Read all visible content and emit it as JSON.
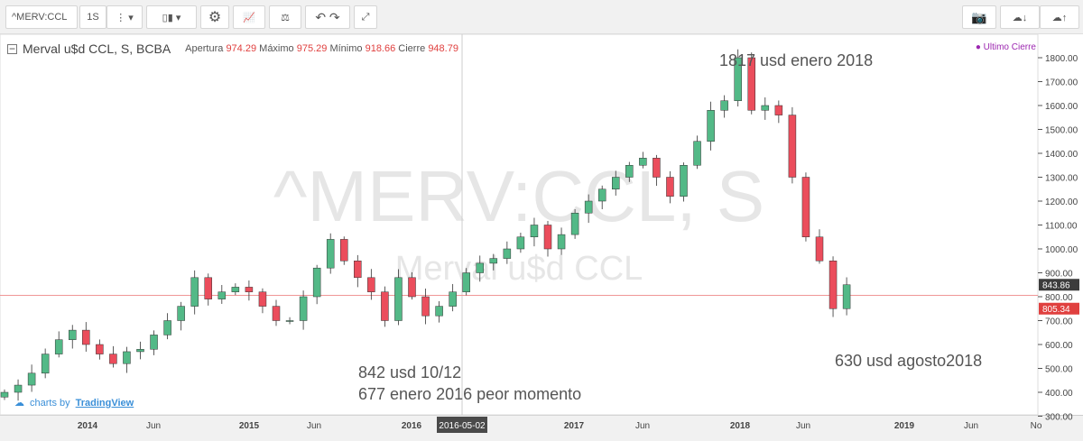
{
  "toolbar": {
    "symbol": "^MERV:CCL",
    "interval": "1S",
    "buttons": [
      "more-icon",
      "dropdown-icon",
      "candles-icon",
      "dropdown-icon",
      "gear-icon",
      "indicators-icon",
      "compare-icon",
      "undo-icon",
      "redo-icon",
      "fullscreen-icon"
    ],
    "right_buttons": [
      "camera-icon",
      "cloud-download-icon",
      "cloud-upload-icon"
    ]
  },
  "legend": {
    "title": "Merval u$d CCL, S, BCBA",
    "open_label": "Apertura",
    "open": "974.29",
    "high_label": "Máximo",
    "high": "975.29",
    "low_label": "Mínimo",
    "low": "918.66",
    "close_label": "Cierre",
    "close": "948.79",
    "last_label": "Ultimo Cierre"
  },
  "watermark": {
    "line1": "^MERV:CCL, S",
    "line2": "Merval u$d CCL"
  },
  "annotations": [
    "1817 usd enero 2018",
    "630 usd agosto2018",
    "842 usd 10/12",
    "677 enero 2016 peor momento"
  ],
  "brand": {
    "prefix": "charts by",
    "name": "TradingView"
  },
  "colors": {
    "up": "#53b987",
    "down": "#eb4d5c",
    "last_line": "#e88",
    "accent": "#9c27b0"
  },
  "chart_data": {
    "type": "candlestick",
    "ylim": [
      270,
      1850
    ],
    "yticks": [
      "300.00",
      "400.00",
      "500.00",
      "600.00",
      "700.00",
      "800.00",
      "900.00",
      "1000.00",
      "1100.00",
      "1200.00",
      "1300.00",
      "1400.00",
      "1500.00",
      "1600.00",
      "1700.00",
      "1800.00"
    ],
    "xticks": [
      "2014",
      "Jun",
      "2015",
      "Jun",
      "2016",
      "2016-05-02",
      "2017",
      "Jun",
      "2018",
      "Jun",
      "2019",
      "Jun",
      "No"
    ],
    "price_labels": {
      "current": "805.34",
      "other": "843.86"
    },
    "months": [
      "2013-07",
      "2013-08",
      "2013-09",
      "2013-10",
      "2013-11",
      "2013-12",
      "2014-01",
      "2014-02",
      "2014-03",
      "2014-04",
      "2014-05",
      "2014-06",
      "2014-07",
      "2014-08",
      "2014-09",
      "2014-10",
      "2014-11",
      "2014-12",
      "2015-01",
      "2015-02",
      "2015-03",
      "2015-04",
      "2015-05",
      "2015-06",
      "2015-07",
      "2015-08",
      "2015-09",
      "2015-10",
      "2015-11",
      "2015-12",
      "2016-01",
      "2016-02",
      "2016-03",
      "2016-04",
      "2016-05",
      "2016-06",
      "2016-07",
      "2016-08",
      "2016-09",
      "2016-10",
      "2016-11",
      "2016-12",
      "2017-01",
      "2017-02",
      "2017-03",
      "2017-04",
      "2017-05",
      "2017-06",
      "2017-07",
      "2017-08",
      "2017-09",
      "2017-10",
      "2017-11",
      "2017-12",
      "2018-01",
      "2018-02",
      "2018-03",
      "2018-04",
      "2018-05",
      "2018-06",
      "2018-07",
      "2018-08",
      "2018-09"
    ],
    "closes": [
      400,
      430,
      480,
      560,
      620,
      660,
      600,
      560,
      520,
      570,
      580,
      640,
      700,
      760,
      880,
      790,
      820,
      840,
      820,
      760,
      700,
      700,
      800,
      920,
      1040,
      950,
      880,
      820,
      700,
      880,
      800,
      720,
      760,
      820,
      900,
      940,
      960,
      1000,
      1050,
      1100,
      1000,
      1060,
      1150,
      1200,
      1250,
      1300,
      1350,
      1380,
      1300,
      1220,
      1350,
      1450,
      1580,
      1620,
      1800,
      1580,
      1600,
      1560,
      1300,
      1050,
      950,
      750,
      850
    ]
  }
}
